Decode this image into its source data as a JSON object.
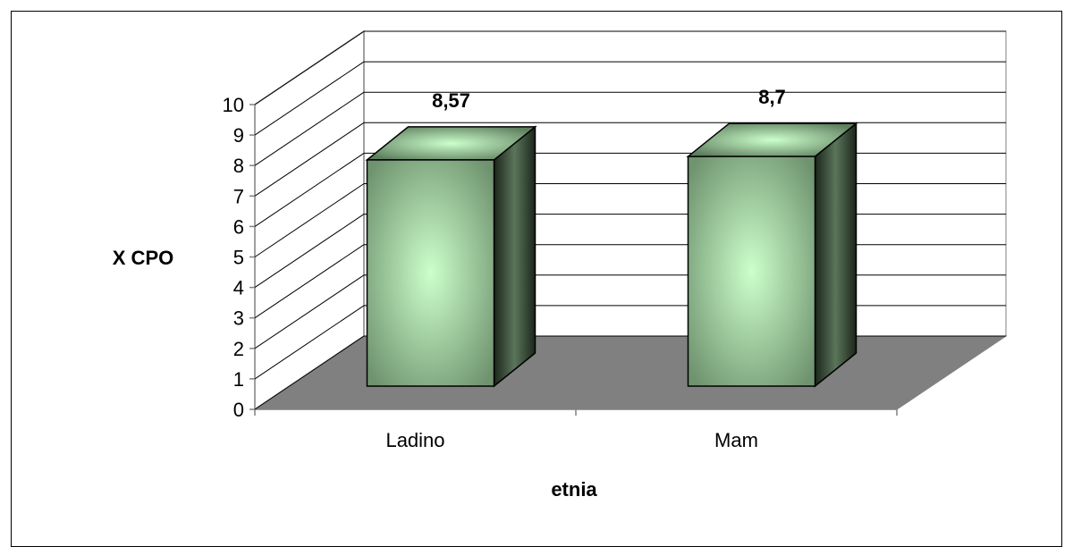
{
  "chart_data": {
    "type": "bar",
    "style": "3d-column",
    "categories": [
      "Ladino",
      "Mam"
    ],
    "values": [
      8.57,
      8.7
    ],
    "data_labels": [
      "8,57",
      "8,7"
    ],
    "xlabel": "etnia",
    "ylabel": "X CPO",
    "ylim": [
      0,
      10
    ],
    "yticks": [
      "0",
      "1",
      "2",
      "3",
      "4",
      "5",
      "6",
      "7",
      "8",
      "9",
      "10"
    ],
    "grid": true,
    "legend": "none",
    "colors": {
      "bar_front_light": "#ccffcc",
      "bar_front_dark": "#6f936f",
      "bar_side": "#2b3a2b",
      "floor": "#808080",
      "gridline": "#000000",
      "wall_line": "#808080"
    }
  }
}
